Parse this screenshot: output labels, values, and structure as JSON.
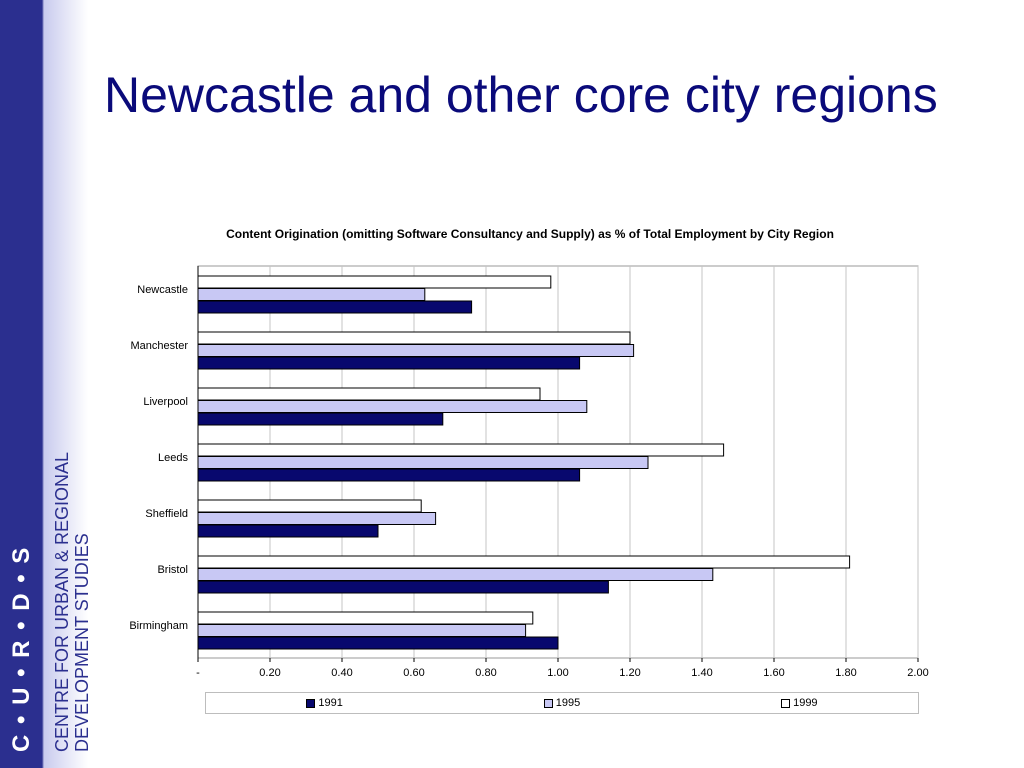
{
  "slide": {
    "title": "Newcastle and other core city regions"
  },
  "branding": {
    "logo_text": "C • U • R • D • S",
    "line1": "CENTRE FOR URBAN & REGIONAL",
    "line2": "DEVELOPMENT STUDIES"
  },
  "colors": {
    "1991": "#08086e",
    "1995": "#c8c8f4",
    "1999": "#ffffff",
    "sidebar": "#2b2f8f",
    "title": "#0a0a7a"
  },
  "chart_data": {
    "type": "bar",
    "orientation": "horizontal",
    "title": "Content Origination (omitting Software Consultancy and Supply) as % of Total Employment by City Region",
    "categories": [
      "Newcastle",
      "Manchester",
      "Liverpool",
      "Leeds",
      "Sheffield",
      "Bristol",
      "Birmingham"
    ],
    "series": [
      {
        "name": "1991",
        "values": [
          0.76,
          1.06,
          0.68,
          1.06,
          0.5,
          1.14,
          1.0
        ]
      },
      {
        "name": "1995",
        "values": [
          0.63,
          1.21,
          1.08,
          1.25,
          0.66,
          1.43,
          0.91
        ]
      },
      {
        "name": "1999",
        "values": [
          0.98,
          1.2,
          0.95,
          1.46,
          0.62,
          1.81,
          0.93
        ]
      }
    ],
    "xlim": [
      0,
      2.0
    ],
    "x_ticks": [
      "-",
      "0.20",
      "0.40",
      "0.60",
      "0.80",
      "1.00",
      "1.20",
      "1.40",
      "1.60",
      "1.80",
      "2.00"
    ],
    "grid": true,
    "legend": "bottom"
  }
}
